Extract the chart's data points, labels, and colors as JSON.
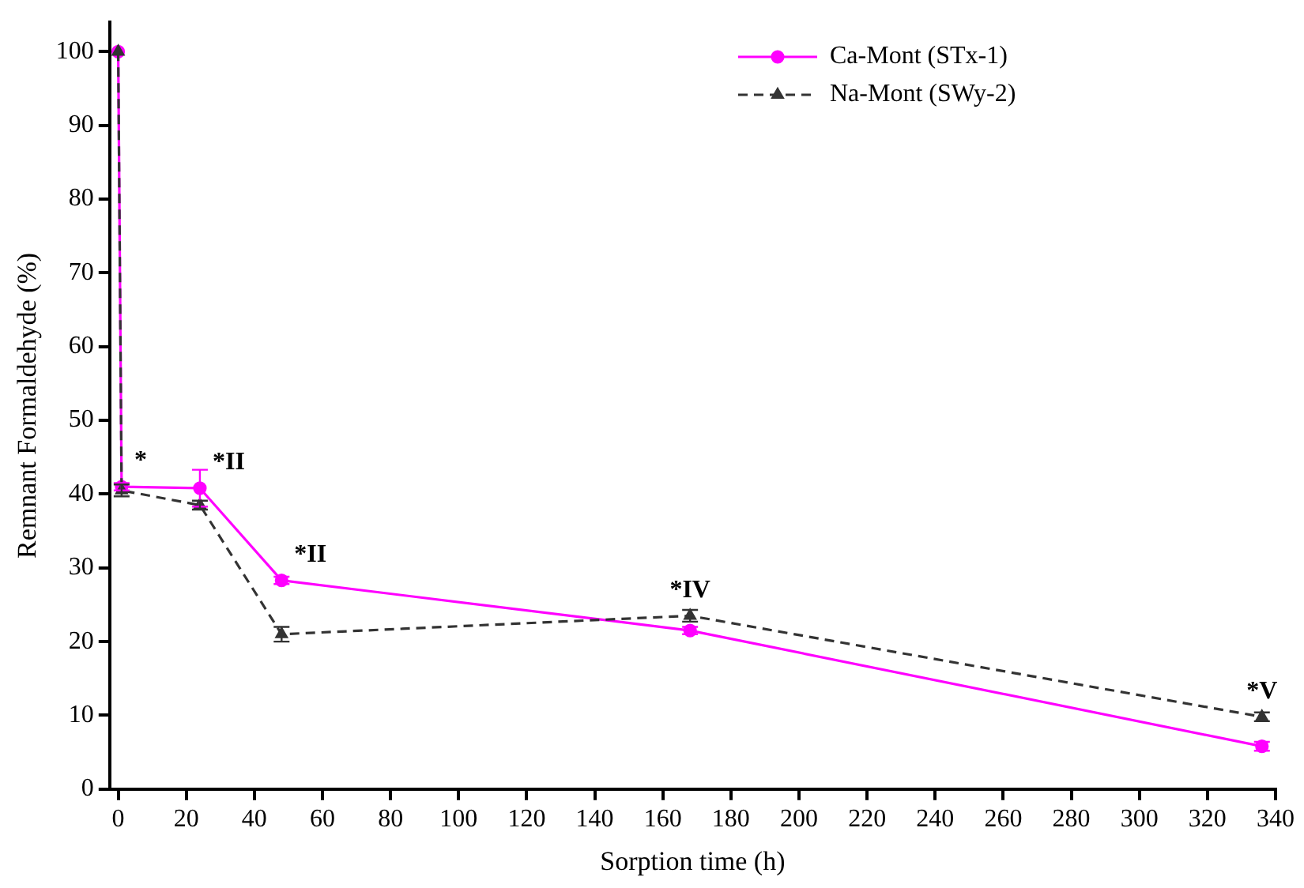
{
  "chart_data": {
    "type": "line",
    "xlabel": "Sorption time (h)",
    "ylabel": "Remnant Formaldehyde (%)",
    "x": [
      0,
      1,
      24,
      48,
      168,
      336
    ],
    "series": [
      {
        "name": "Ca-Mont (STx-1)",
        "color": "#ff00ff",
        "marker": "circle",
        "line_style": "solid",
        "values": [
          100,
          41,
          40.8,
          28.3,
          21.5,
          5.8
        ],
        "errors": [
          null,
          0.5,
          2.5,
          0.5,
          0.5,
          0.6
        ]
      },
      {
        "name": "Na-Mont (SWy-2)",
        "color": "#333333",
        "marker": "triangle",
        "line_style": "dashed",
        "values": [
          100,
          40.5,
          38.5,
          21,
          23.5,
          9.8
        ],
        "errors": [
          null,
          0.8,
          0.6,
          1,
          0.8,
          0.6
        ]
      }
    ],
    "xlim": [
      -2.5,
      340
    ],
    "xticks": [
      0,
      20,
      40,
      60,
      80,
      100,
      120,
      140,
      160,
      180,
      200,
      220,
      240,
      260,
      280,
      300,
      320,
      340
    ],
    "ylim": [
      0,
      104
    ],
    "yticks": [
      0,
      10,
      20,
      30,
      40,
      50,
      60,
      70,
      80,
      90,
      100
    ],
    "grid": false,
    "legend": "top right",
    "annotations": [
      {
        "text": "*",
        "x": 1,
        "y": 41
      },
      {
        "text": "*II",
        "x": 24,
        "y": 40.8
      },
      {
        "text": "*II",
        "x": 48,
        "y": 28.3
      },
      {
        "text": "*IV",
        "x": 168,
        "y": 23.5
      },
      {
        "text": "*V",
        "x": 336,
        "y": 9.8
      }
    ]
  }
}
